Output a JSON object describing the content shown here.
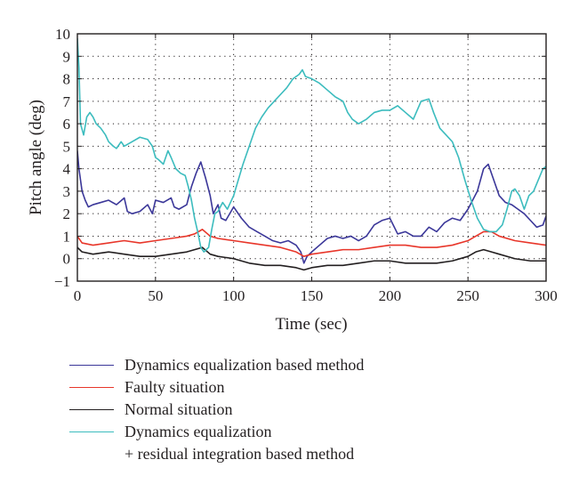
{
  "chart_data": {
    "type": "line",
    "xlabel": "Time (sec)",
    "ylabel": "Pitch angle (deg)",
    "xlim": [
      0,
      300
    ],
    "ylim": [
      -1,
      10
    ],
    "x_ticks": [
      0,
      50,
      100,
      150,
      200,
      250,
      300
    ],
    "y_ticks": [
      -1,
      0,
      1,
      2,
      3,
      4,
      5,
      6,
      7,
      8,
      9,
      10
    ],
    "x_tick_labels": [
      "0",
      "50",
      "100",
      "150",
      "200",
      "250",
      "300"
    ],
    "y_tick_labels": [
      "−1",
      "0",
      "1",
      "2",
      "3",
      "4",
      "5",
      "6",
      "7",
      "8",
      "9",
      "10"
    ],
    "grid": true,
    "grid_style": "dotted",
    "legend_position": "below",
    "series": [
      {
        "name": "Dynamics equalization based method",
        "color": "#3b3799",
        "points": [
          [
            0,
            4.8
          ],
          [
            1,
            4.0
          ],
          [
            3,
            3.0
          ],
          [
            5,
            2.6
          ],
          [
            7,
            2.3
          ],
          [
            10,
            2.4
          ],
          [
            15,
            2.5
          ],
          [
            20,
            2.6
          ],
          [
            25,
            2.4
          ],
          [
            30,
            2.7
          ],
          [
            32,
            2.1
          ],
          [
            35,
            2.0
          ],
          [
            40,
            2.1
          ],
          [
            45,
            2.4
          ],
          [
            48,
            2.0
          ],
          [
            50,
            2.6
          ],
          [
            55,
            2.5
          ],
          [
            60,
            2.7
          ],
          [
            62,
            2.3
          ],
          [
            65,
            2.2
          ],
          [
            70,
            2.4
          ],
          [
            73,
            3.2
          ],
          [
            76,
            3.8
          ],
          [
            79,
            4.3
          ],
          [
            82,
            3.6
          ],
          [
            85,
            2.8
          ],
          [
            87,
            2.0
          ],
          [
            90,
            2.4
          ],
          [
            92,
            1.8
          ],
          [
            95,
            1.7
          ],
          [
            100,
            2.3
          ],
          [
            105,
            1.8
          ],
          [
            110,
            1.4
          ],
          [
            115,
            1.2
          ],
          [
            120,
            1.0
          ],
          [
            125,
            0.8
          ],
          [
            130,
            0.7
          ],
          [
            135,
            0.8
          ],
          [
            140,
            0.6
          ],
          [
            143,
            0.3
          ],
          [
            145,
            -0.2
          ],
          [
            147,
            0.1
          ],
          [
            150,
            0.3
          ],
          [
            155,
            0.6
          ],
          [
            160,
            0.9
          ],
          [
            165,
            1.0
          ],
          [
            170,
            0.9
          ],
          [
            175,
            1.0
          ],
          [
            180,
            0.8
          ],
          [
            185,
            1.0
          ],
          [
            190,
            1.5
          ],
          [
            195,
            1.7
          ],
          [
            200,
            1.8
          ],
          [
            205,
            1.1
          ],
          [
            210,
            1.2
          ],
          [
            215,
            1.0
          ],
          [
            220,
            1.0
          ],
          [
            225,
            1.4
          ],
          [
            230,
            1.2
          ],
          [
            235,
            1.6
          ],
          [
            240,
            1.8
          ],
          [
            245,
            1.7
          ],
          [
            250,
            2.2
          ],
          [
            253,
            2.6
          ],
          [
            256,
            3.0
          ],
          [
            260,
            4.0
          ],
          [
            263,
            4.2
          ],
          [
            266,
            3.6
          ],
          [
            270,
            2.8
          ],
          [
            274,
            2.5
          ],
          [
            278,
            2.4
          ],
          [
            282,
            2.2
          ],
          [
            286,
            2.0
          ],
          [
            290,
            1.7
          ],
          [
            294,
            1.4
          ],
          [
            298,
            1.5
          ],
          [
            300,
            1.9
          ]
        ]
      },
      {
        "name": "Faulty situation",
        "color": "#e8362a",
        "points": [
          [
            0,
            1.0
          ],
          [
            3,
            0.7
          ],
          [
            10,
            0.6
          ],
          [
            20,
            0.7
          ],
          [
            30,
            0.8
          ],
          [
            40,
            0.7
          ],
          [
            50,
            0.8
          ],
          [
            60,
            0.9
          ],
          [
            70,
            1.0
          ],
          [
            75,
            1.1
          ],
          [
            80,
            1.3
          ],
          [
            85,
            1.0
          ],
          [
            90,
            0.9
          ],
          [
            100,
            0.8
          ],
          [
            110,
            0.7
          ],
          [
            120,
            0.6
          ],
          [
            130,
            0.5
          ],
          [
            140,
            0.3
          ],
          [
            145,
            0.1
          ],
          [
            150,
            0.2
          ],
          [
            160,
            0.3
          ],
          [
            170,
            0.4
          ],
          [
            180,
            0.4
          ],
          [
            190,
            0.5
          ],
          [
            200,
            0.6
          ],
          [
            210,
            0.6
          ],
          [
            220,
            0.5
          ],
          [
            230,
            0.5
          ],
          [
            240,
            0.6
          ],
          [
            250,
            0.8
          ],
          [
            255,
            1.0
          ],
          [
            260,
            1.2
          ],
          [
            265,
            1.2
          ],
          [
            270,
            1.0
          ],
          [
            280,
            0.8
          ],
          [
            290,
            0.7
          ],
          [
            300,
            0.6
          ]
        ]
      },
      {
        "name": "Normal situation",
        "color": "#231f20",
        "points": [
          [
            0,
            0.5
          ],
          [
            3,
            0.3
          ],
          [
            10,
            0.2
          ],
          [
            20,
            0.3
          ],
          [
            30,
            0.2
          ],
          [
            40,
            0.1
          ],
          [
            50,
            0.1
          ],
          [
            60,
            0.2
          ],
          [
            70,
            0.3
          ],
          [
            75,
            0.4
          ],
          [
            80,
            0.5
          ],
          [
            85,
            0.2
          ],
          [
            90,
            0.1
          ],
          [
            100,
            0.0
          ],
          [
            110,
            -0.2
          ],
          [
            120,
            -0.3
          ],
          [
            130,
            -0.3
          ],
          [
            140,
            -0.4
          ],
          [
            145,
            -0.5
          ],
          [
            150,
            -0.4
          ],
          [
            160,
            -0.3
          ],
          [
            170,
            -0.3
          ],
          [
            180,
            -0.2
          ],
          [
            190,
            -0.1
          ],
          [
            200,
            -0.1
          ],
          [
            210,
            -0.2
          ],
          [
            220,
            -0.2
          ],
          [
            230,
            -0.2
          ],
          [
            240,
            -0.1
          ],
          [
            250,
            0.1
          ],
          [
            255,
            0.3
          ],
          [
            260,
            0.4
          ],
          [
            265,
            0.3
          ],
          [
            270,
            0.2
          ],
          [
            280,
            0.0
          ],
          [
            290,
            -0.1
          ],
          [
            300,
            -0.1
          ]
        ]
      },
      {
        "name": "Dynamics equalization + residual integration based method",
        "color": "#3cbcbe",
        "points": [
          [
            0,
            9.8
          ],
          [
            1,
            8.5
          ],
          [
            2,
            6.0
          ],
          [
            4,
            5.5
          ],
          [
            6,
            6.3
          ],
          [
            8,
            6.5
          ],
          [
            10,
            6.3
          ],
          [
            12,
            6.0
          ],
          [
            15,
            5.8
          ],
          [
            18,
            5.5
          ],
          [
            20,
            5.2
          ],
          [
            23,
            5.0
          ],
          [
            25,
            4.9
          ],
          [
            28,
            5.2
          ],
          [
            30,
            5.0
          ],
          [
            35,
            5.2
          ],
          [
            40,
            5.4
          ],
          [
            45,
            5.3
          ],
          [
            48,
            5.0
          ],
          [
            50,
            4.5
          ],
          [
            52,
            4.4
          ],
          [
            55,
            4.2
          ],
          [
            58,
            4.8
          ],
          [
            60,
            4.5
          ],
          [
            63,
            4.0
          ],
          [
            66,
            3.8
          ],
          [
            69,
            3.7
          ],
          [
            71,
            3.2
          ],
          [
            73,
            2.6
          ],
          [
            75,
            1.8
          ],
          [
            77,
            1.2
          ],
          [
            79,
            0.5
          ],
          [
            81,
            0.3
          ],
          [
            84,
            0.5
          ],
          [
            86,
            1.3
          ],
          [
            88,
            2.0
          ],
          [
            90,
            2.1
          ],
          [
            93,
            2.5
          ],
          [
            96,
            2.2
          ],
          [
            100,
            2.8
          ],
          [
            103,
            3.5
          ],
          [
            106,
            4.2
          ],
          [
            110,
            5.0
          ],
          [
            114,
            5.8
          ],
          [
            118,
            6.3
          ],
          [
            122,
            6.7
          ],
          [
            126,
            7.0
          ],
          [
            130,
            7.3
          ],
          [
            134,
            7.6
          ],
          [
            138,
            8.0
          ],
          [
            142,
            8.2
          ],
          [
            144,
            8.4
          ],
          [
            146,
            8.1
          ],
          [
            150,
            8.0
          ],
          [
            155,
            7.8
          ],
          [
            160,
            7.5
          ],
          [
            165,
            7.2
          ],
          [
            170,
            7.0
          ],
          [
            173,
            6.5
          ],
          [
            176,
            6.2
          ],
          [
            180,
            6.0
          ],
          [
            185,
            6.2
          ],
          [
            190,
            6.5
          ],
          [
            195,
            6.6
          ],
          [
            200,
            6.6
          ],
          [
            205,
            6.8
          ],
          [
            210,
            6.5
          ],
          [
            215,
            6.2
          ],
          [
            220,
            7.0
          ],
          [
            225,
            7.1
          ],
          [
            228,
            6.5
          ],
          [
            232,
            5.8
          ],
          [
            236,
            5.5
          ],
          [
            240,
            5.2
          ],
          [
            244,
            4.5
          ],
          [
            248,
            3.5
          ],
          [
            252,
            2.6
          ],
          [
            256,
            1.8
          ],
          [
            260,
            1.3
          ],
          [
            264,
            1.2
          ],
          [
            268,
            1.2
          ],
          [
            272,
            1.5
          ],
          [
            275,
            2.2
          ],
          [
            278,
            3.0
          ],
          [
            280,
            3.1
          ],
          [
            283,
            2.8
          ],
          [
            286,
            2.2
          ],
          [
            289,
            2.8
          ],
          [
            292,
            3.0
          ],
          [
            295,
            3.5
          ],
          [
            298,
            4.0
          ],
          [
            300,
            4.1
          ]
        ]
      }
    ],
    "legend": [
      {
        "label": "Dynamics equalization based method",
        "color": "#3b3799"
      },
      {
        "label": "Faulty situation",
        "color": "#e8362a"
      },
      {
        "label": "Normal situation",
        "color": "#231f20"
      },
      {
        "label": "Dynamics equalization",
        "label_line2": "+ residual integration based method",
        "color": "#3cbcbe"
      }
    ]
  }
}
